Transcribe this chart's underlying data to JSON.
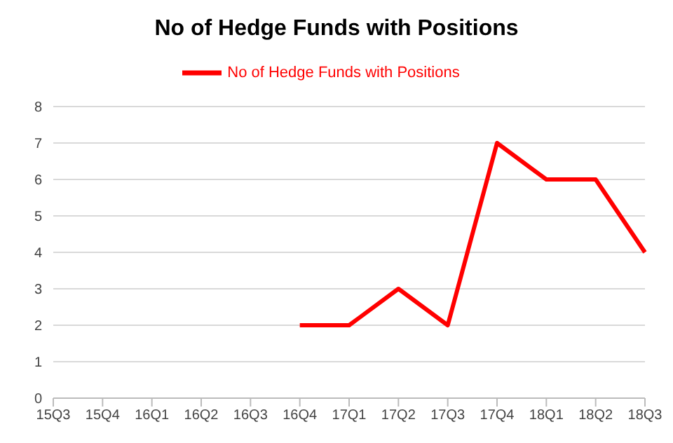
{
  "chart_data": {
    "type": "line",
    "title": "No of Hedge Funds with Positions",
    "categories": [
      "15Q3",
      "15Q4",
      "16Q1",
      "16Q2",
      "16Q3",
      "16Q4",
      "17Q1",
      "17Q2",
      "17Q3",
      "17Q4",
      "18Q1",
      "18Q2",
      "18Q3"
    ],
    "series": [
      {
        "name": "No of Hedge Funds with Positions",
        "color": "#ff0000",
        "values": [
          null,
          null,
          null,
          null,
          null,
          2,
          2,
          3,
          2,
          7,
          6,
          6,
          4
        ]
      }
    ],
    "ylim": [
      0,
      8
    ],
    "yticks": [
      0,
      1,
      2,
      3,
      4,
      5,
      6,
      7,
      8
    ],
    "grid": "y",
    "legend": "top",
    "marker": "none",
    "line_style": "solid"
  }
}
